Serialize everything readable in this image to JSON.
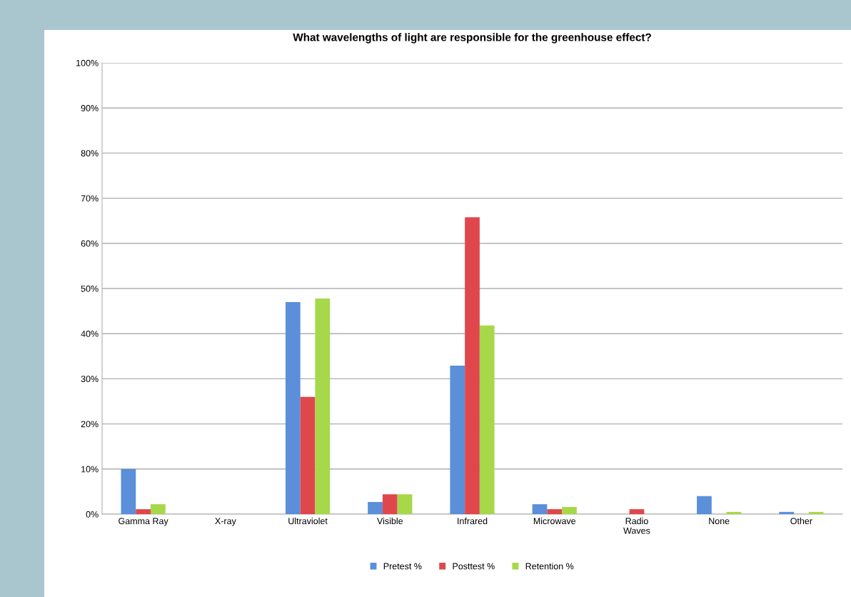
{
  "chart_data": {
    "type": "bar",
    "title": "What wavelengths of light are responsible for the greenhouse effect?",
    "categories": [
      "Gamma Ray",
      "X-ray",
      "Ultraviolet",
      "Visible",
      "Infrared",
      "Microwave",
      "Radio\nWaves",
      "None",
      "Other"
    ],
    "series": [
      {
        "name": "Pretest %",
        "color": "#5b8fd9",
        "values": [
          10.0,
          0,
          47.0,
          2.7,
          32.9,
          2.2,
          0,
          4.0,
          0.5
        ]
      },
      {
        "name": "Posttest %",
        "color": "#e0474c",
        "values": [
          1.1,
          0,
          26.0,
          4.4,
          65.8,
          1.1,
          1.1,
          0,
          0
        ]
      },
      {
        "name": "Retention %",
        "color": "#a6d84a",
        "values": [
          2.2,
          0,
          47.8,
          4.4,
          41.8,
          1.6,
          0,
          0.5,
          0.5
        ]
      }
    ],
    "ylim": [
      0,
      100
    ],
    "yticks": [
      {
        "value": 0,
        "label": "0%"
      },
      {
        "value": 10,
        "label": "10%"
      },
      {
        "value": 20,
        "label": "20%"
      },
      {
        "value": 30,
        "label": "30%"
      },
      {
        "value": 40,
        "label": "40%"
      },
      {
        "value": 50,
        "label": "50%"
      },
      {
        "value": 60,
        "label": "60%"
      },
      {
        "value": 70,
        "label": "70%"
      },
      {
        "value": 80,
        "label": "80%"
      },
      {
        "value": 90,
        "label": "90%"
      },
      {
        "value": 100,
        "label": "100%"
      }
    ],
    "grid": "y",
    "legend": "bottom"
  }
}
